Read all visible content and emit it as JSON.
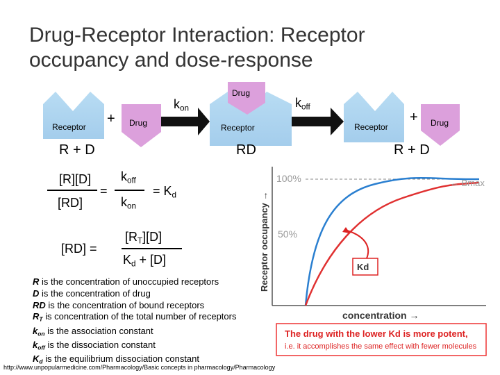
{
  "title": "Drug-Receptor Interaction: Receptor occupancy and dose-response",
  "scheme": {
    "left": {
      "receptor": "Receptor",
      "plus": "+",
      "drug": "Drug",
      "label": "R + D"
    },
    "forward_rate": {
      "base": "k",
      "sub": "on"
    },
    "complex": {
      "drug": "Drug",
      "receptor": "Receptor",
      "label": "RD"
    },
    "reverse_rate": {
      "base": "k",
      "sub": "off"
    },
    "right": {
      "receptor": "Receptor",
      "plus": "+",
      "drug": "Drug",
      "label": "R + D"
    }
  },
  "equations": {
    "dissociation": {
      "numerator": "[R][D]",
      "denominator": "[RD]",
      "equals": "=",
      "rate_numerator": {
        "base": "k",
        "sub": "off"
      },
      "rate_denominator": {
        "base": "k",
        "sub": "on"
      },
      "result": {
        "base": "= K",
        "sub": "d"
      }
    },
    "occupancy": {
      "lhs": "[RD] =",
      "numerator": {
        "before": "[R",
        "sub": "T",
        "after": "][D]"
      },
      "denominator": {
        "before": "K",
        "sub": "d",
        "after": " + [D]"
      }
    }
  },
  "definitions": [
    {
      "term": "R",
      "text": " is the concentration of unoccupied receptors"
    },
    {
      "term": "D",
      "text": " is the concentration of drug"
    },
    {
      "term": "RD",
      "text": " is the concentration of bound receptors"
    },
    {
      "term": "R",
      "sub": "T",
      "text": " is concentration of the total number of receptors"
    },
    {
      "term": "k",
      "sub": "on",
      "text": " is the association constant"
    },
    {
      "term": "k",
      "sub": "off",
      "text": " is the dissociation constant"
    },
    {
      "term": "K",
      "sub": "d",
      "text": " is the equilibrium dissociation constant"
    }
  ],
  "graph": {
    "y_axis_label": "Receptor occupancy →",
    "max_label": "100%",
    "half_label": "50%",
    "bmax": "← Bmax",
    "kd": "Kd",
    "x_axis_label": "concentration →",
    "note": {
      "line1": "The drug with the lower Kd is more potent,",
      "line2": "i.e. it accomplishes the same effect with fewer molecules"
    }
  },
  "source": "http://www.unpopularmedicine.com/Pharmacology/Basic concepts in pharmacology/Pharmacology"
}
